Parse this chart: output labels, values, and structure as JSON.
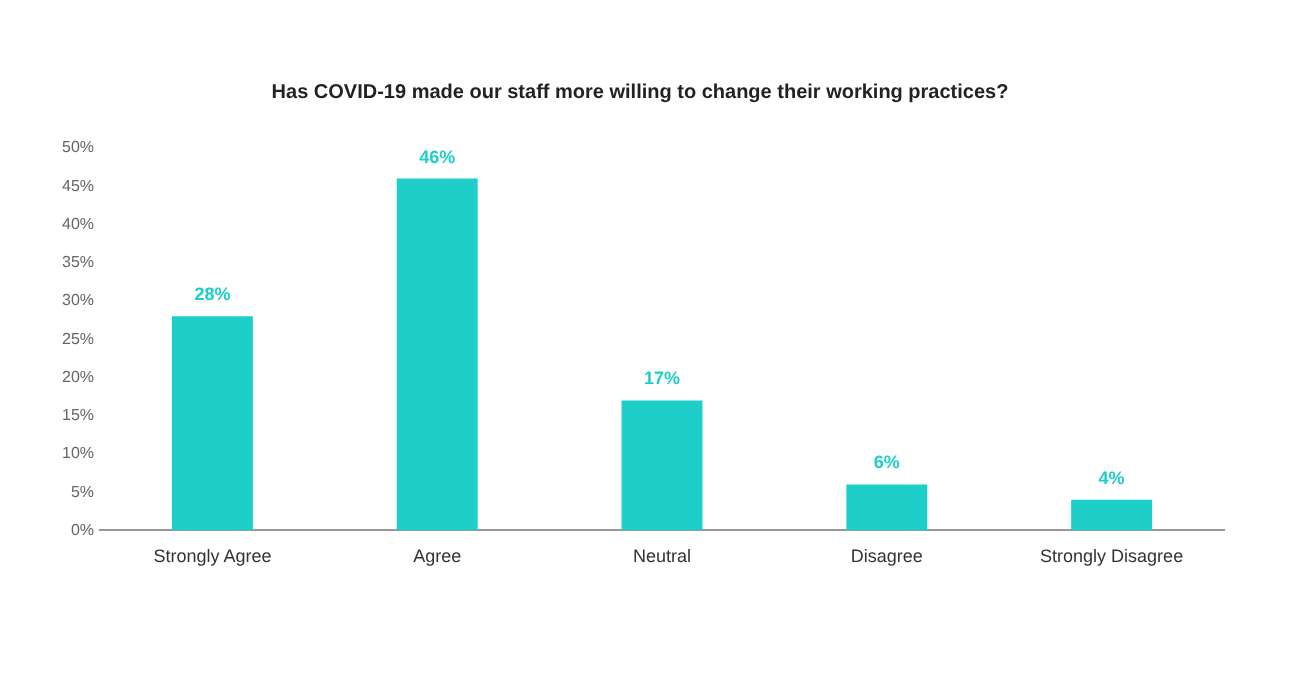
{
  "chart_data": {
    "type": "bar",
    "title": "Has COVID-19 made our staff more willing to change their working practices?",
    "categories": [
      "Strongly Agree",
      "Agree",
      "Neutral",
      "Disagree",
      "Strongly Disagree"
    ],
    "values": [
      28,
      46,
      17,
      6,
      4
    ],
    "value_labels": [
      "28%",
      "46%",
      "17%",
      "6%",
      "4%"
    ],
    "color": "#1ecfc9",
    "ylim": [
      0,
      50
    ],
    "yticks": [
      {
        "value": 0,
        "label": "0%"
      },
      {
        "value": 5,
        "label": "5%"
      },
      {
        "value": 10,
        "label": "10%"
      },
      {
        "value": 15,
        "label": "15%"
      },
      {
        "value": 20,
        "label": "20%"
      },
      {
        "value": 25,
        "label": "25%"
      },
      {
        "value": 30,
        "label": "30%"
      },
      {
        "value": 35,
        "label": "35%"
      },
      {
        "value": 40,
        "label": "40%"
      },
      {
        "value": 45,
        "label": "45%"
      },
      {
        "value": 50,
        "label": "50%"
      }
    ],
    "grid": false,
    "legend": false
  }
}
